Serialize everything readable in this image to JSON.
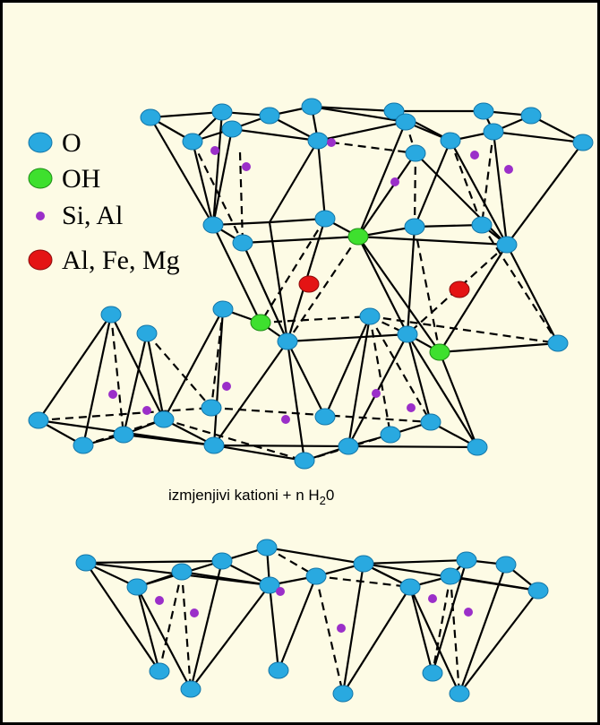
{
  "legend": [
    {
      "label": "O",
      "color": "#29a9e0",
      "kind": "oxygen"
    },
    {
      "label": "OH",
      "color": "#3ee02e",
      "kind": "hydroxyl"
    },
    {
      "label": "Si, Al",
      "color": "#9b2fc9",
      "kind": "tetrahedral-cation"
    },
    {
      "label": "Al, Fe, Mg",
      "color": "#e41414",
      "kind": "octahedral-cation"
    }
  ],
  "caption": {
    "main": "izmjenjivi kationi + n H",
    "subscript": "2",
    "suffix": "0"
  },
  "colors": {
    "background": "#fdfbe5",
    "border": "#000000",
    "bond": "#000000"
  }
}
